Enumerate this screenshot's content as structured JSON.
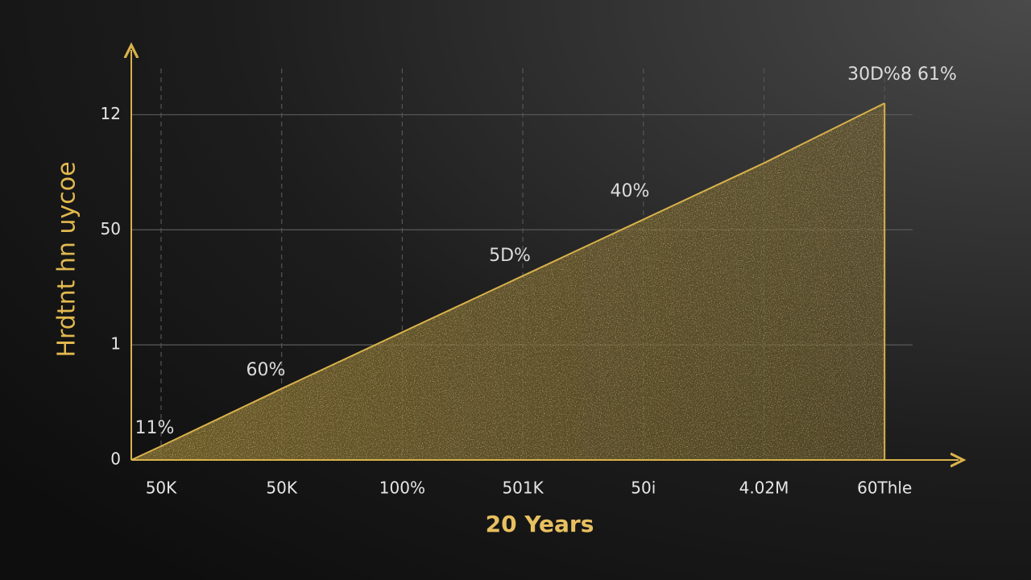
{
  "chart_data": {
    "type": "area",
    "y_label": "Hrdtnt hn uycoe",
    "x_label": "20 Years",
    "categories": [
      "50K",
      "50K",
      "100%",
      "501K",
      "50i",
      "4.02M",
      "60Thle"
    ],
    "values": [
      0.12,
      0.62,
      1.11,
      1.6,
      2.09,
      2.58,
      3.1
    ],
    "color": "#d9b24a",
    "ylim": [
      0,
      3.5
    ],
    "yticks": [
      0,
      1,
      {
        "value": 2,
        "label": "50"
      },
      {
        "value": 3,
        "label": "12"
      }
    ],
    "grid": true,
    "annotations": [
      "11%",
      "60%",
      "5D%",
      "40%",
      "30D%8 61%"
    ]
  }
}
